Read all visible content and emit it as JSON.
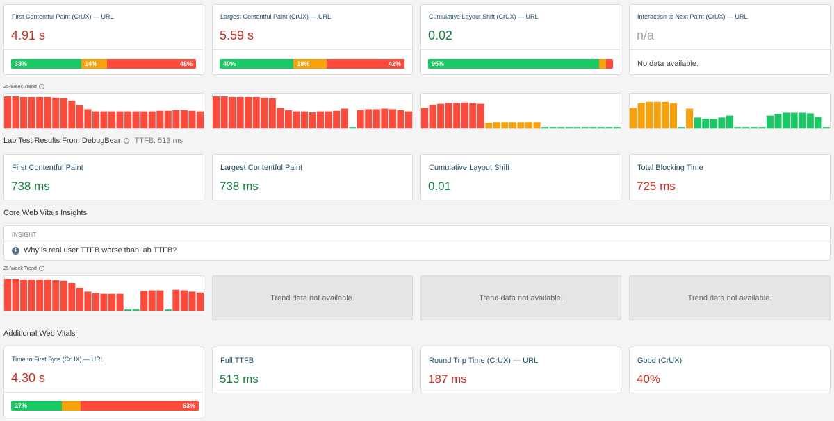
{
  "crux_metrics": [
    {
      "title": "First Contentful Paint (CrUX) — URL",
      "value": "4.91 s",
      "dist": [
        {
          "pct": 38,
          "label": "38%",
          "color": "#18c964"
        },
        {
          "pct": 14,
          "label": "14%",
          "color": "#f7a10c"
        },
        {
          "pct": 48,
          "label": "48%",
          "color": "#fc4b3b"
        }
      ]
    },
    {
      "title": "Largest Contentful Paint (CrUX) — URL",
      "value": "5.59 s",
      "dist": [
        {
          "pct": 40,
          "label": "40%",
          "color": "#18c964"
        },
        {
          "pct": 18,
          "label": "18%",
          "color": "#f7a10c"
        },
        {
          "pct": 42,
          "label": "42%",
          "color": "#fc4b3b"
        }
      ]
    },
    {
      "title": "Cumulative Layout Shift (CrUX) — URL",
      "value": "0.02",
      "dist": [
        {
          "pct": 95,
          "label": "95%",
          "color": "#18c964"
        },
        {
          "pct": 2.5,
          "label": "",
          "color": "#f7a10c"
        },
        {
          "pct": 2.5,
          "label": "",
          "color": "#fc4b3b"
        }
      ]
    },
    {
      "title": "Interaction to Next Paint (CrUX) — URL",
      "value": "n/a",
      "no_data": "No data available."
    }
  ],
  "trend_label": "25-Week Trend",
  "help_glyph": "?",
  "trends_row1": [
    {
      "bars": [
        {
          "v": 1.0,
          "c": "#fc4b3b"
        },
        {
          "v": 1.0,
          "c": "#fc4b3b"
        },
        {
          "v": 0.98,
          "c": "#fc4b3b"
        },
        {
          "v": 0.98,
          "c": "#fc4b3b"
        },
        {
          "v": 0.98,
          "c": "#fc4b3b"
        },
        {
          "v": 0.98,
          "c": "#fc4b3b"
        },
        {
          "v": 0.96,
          "c": "#fc4b3b"
        },
        {
          "v": 0.94,
          "c": "#fc4b3b"
        },
        {
          "v": 0.87,
          "c": "#fc4b3b"
        },
        {
          "v": 0.72,
          "c": "#fc4b3b"
        },
        {
          "v": 0.6,
          "c": "#fc4b3b"
        },
        {
          "v": 0.53,
          "c": "#fc4b3b"
        },
        {
          "v": 0.53,
          "c": "#fc4b3b"
        },
        {
          "v": 0.53,
          "c": "#fc4b3b"
        },
        {
          "v": 0.53,
          "c": "#fc4b3b"
        },
        {
          "v": 0.53,
          "c": "#fc4b3b"
        },
        {
          "v": 0.53,
          "c": "#fc4b3b"
        },
        {
          "v": 0.53,
          "c": "#fc4b3b"
        },
        {
          "v": 0.53,
          "c": "#fc4b3b"
        },
        {
          "v": 0.55,
          "c": "#fc4b3b"
        },
        {
          "v": 0.55,
          "c": "#fc4b3b"
        },
        {
          "v": 0.57,
          "c": "#fc4b3b"
        },
        {
          "v": 0.57,
          "c": "#fc4b3b"
        },
        {
          "v": 0.55,
          "c": "#fc4b3b"
        },
        {
          "v": 0.53,
          "c": "#fc4b3b"
        }
      ]
    },
    {
      "bars": [
        {
          "v": 1.0,
          "c": "#fc4b3b"
        },
        {
          "v": 1.0,
          "c": "#fc4b3b"
        },
        {
          "v": 0.98,
          "c": "#fc4b3b"
        },
        {
          "v": 0.98,
          "c": "#fc4b3b"
        },
        {
          "v": 0.98,
          "c": "#fc4b3b"
        },
        {
          "v": 0.98,
          "c": "#fc4b3b"
        },
        {
          "v": 0.96,
          "c": "#fc4b3b"
        },
        {
          "v": 0.94,
          "c": "#fc4b3b"
        },
        {
          "v": 0.64,
          "c": "#fc4b3b"
        },
        {
          "v": 0.57,
          "c": "#fc4b3b"
        },
        {
          "v": 0.53,
          "c": "#fc4b3b"
        },
        {
          "v": 0.53,
          "c": "#fc4b3b"
        },
        {
          "v": 0.5,
          "c": "#fc4b3b"
        },
        {
          "v": 0.53,
          "c": "#fc4b3b"
        },
        {
          "v": 0.53,
          "c": "#fc4b3b"
        },
        {
          "v": 0.55,
          "c": "#fc4b3b"
        },
        {
          "v": 0.62,
          "c": "#fc4b3b"
        },
        {
          "v": 0.04,
          "c": "#18c964"
        },
        {
          "v": 0.57,
          "c": "#fc4b3b"
        },
        {
          "v": 0.6,
          "c": "#fc4b3b"
        },
        {
          "v": 0.6,
          "c": "#fc4b3b"
        },
        {
          "v": 0.62,
          "c": "#fc4b3b"
        },
        {
          "v": 0.6,
          "c": "#fc4b3b"
        },
        {
          "v": 0.57,
          "c": "#fc4b3b"
        },
        {
          "v": 0.53,
          "c": "#fc4b3b"
        }
      ]
    },
    {
      "bars": [
        {
          "v": 0.64,
          "c": "#fc4b3b"
        },
        {
          "v": 0.74,
          "c": "#fc4b3b"
        },
        {
          "v": 0.77,
          "c": "#fc4b3b"
        },
        {
          "v": 0.79,
          "c": "#fc4b3b"
        },
        {
          "v": 0.79,
          "c": "#fc4b3b"
        },
        {
          "v": 0.81,
          "c": "#fc4b3b"
        },
        {
          "v": 0.79,
          "c": "#fc4b3b"
        },
        {
          "v": 0.77,
          "c": "#fc4b3b"
        },
        {
          "v": 0.17,
          "c": "#f7a10c"
        },
        {
          "v": 0.19,
          "c": "#f7a10c"
        },
        {
          "v": 0.19,
          "c": "#f7a10c"
        },
        {
          "v": 0.19,
          "c": "#f7a10c"
        },
        {
          "v": 0.19,
          "c": "#f7a10c"
        },
        {
          "v": 0.19,
          "c": "#f7a10c"
        },
        {
          "v": 0.19,
          "c": "#f7a10c"
        },
        {
          "v": 0.04,
          "c": "#18c964"
        },
        {
          "v": 0.04,
          "c": "#18c964"
        },
        {
          "v": 0.04,
          "c": "#18c964"
        },
        {
          "v": 0.04,
          "c": "#18c964"
        },
        {
          "v": 0.04,
          "c": "#18c964"
        },
        {
          "v": 0.04,
          "c": "#18c964"
        },
        {
          "v": 0.04,
          "c": "#18c964"
        },
        {
          "v": 0.04,
          "c": "#18c964"
        },
        {
          "v": 0.04,
          "c": "#18c964"
        },
        {
          "v": 0.04,
          "c": "#18c964"
        }
      ]
    },
    {
      "bars": [
        {
          "v": 0.64,
          "c": "#f7a10c"
        },
        {
          "v": 0.79,
          "c": "#f7a10c"
        },
        {
          "v": 0.83,
          "c": "#f7a10c"
        },
        {
          "v": 0.83,
          "c": "#f7a10c"
        },
        {
          "v": 0.83,
          "c": "#f7a10c"
        },
        {
          "v": 0.79,
          "c": "#f7a10c"
        },
        {
          "v": 0.04,
          "c": "#18c964"
        },
        {
          "v": 0.62,
          "c": "#f7a10c"
        },
        {
          "v": 0.34,
          "c": "#18c964"
        },
        {
          "v": 0.3,
          "c": "#18c964"
        },
        {
          "v": 0.3,
          "c": "#18c964"
        },
        {
          "v": 0.34,
          "c": "#18c964"
        },
        {
          "v": 0.4,
          "c": "#18c964"
        },
        {
          "v": 0.04,
          "c": "#18c964"
        },
        {
          "v": 0.04,
          "c": "#18c964"
        },
        {
          "v": 0.04,
          "c": "#18c964"
        },
        {
          "v": 0.04,
          "c": "#18c964"
        },
        {
          "v": 0.4,
          "c": "#18c964"
        },
        {
          "v": 0.45,
          "c": "#18c964"
        },
        {
          "v": 0.49,
          "c": "#18c964"
        },
        {
          "v": 0.49,
          "c": "#18c964"
        },
        {
          "v": 0.49,
          "c": "#18c964"
        },
        {
          "v": 0.47,
          "c": "#18c964"
        },
        {
          "v": 0.36,
          "c": "#18c964"
        },
        {
          "v": 0.04,
          "c": "#18c964"
        }
      ]
    }
  ],
  "lab": {
    "section_title": "Lab Test Results From DebugBear",
    "ttfb": "TTFB: 513 ms",
    "metrics": [
      {
        "title": "First Contentful Paint",
        "value": "738 ms",
        "status": "good"
      },
      {
        "title": "Largest Contentful Paint",
        "value": "738 ms",
        "status": "good"
      },
      {
        "title": "Cumulative Layout Shift",
        "value": "0.01",
        "status": "good"
      },
      {
        "title": "Total Blocking Time",
        "value": "725 ms",
        "status": "poor"
      }
    ]
  },
  "insights": {
    "section_title": "Core Web Vitals Insights",
    "header": "INSIGHT",
    "icon": "info-icon",
    "icon_glyph": "i",
    "text": "Why is real user TTFB worse than lab TTFB?"
  },
  "trends_row2": {
    "first": {
      "bars": [
        {
          "v": 1.0,
          "c": "#fc4b3b"
        },
        {
          "v": 1.0,
          "c": "#fc4b3b"
        },
        {
          "v": 0.98,
          "c": "#fc4b3b"
        },
        {
          "v": 0.98,
          "c": "#fc4b3b"
        },
        {
          "v": 0.98,
          "c": "#fc4b3b"
        },
        {
          "v": 0.98,
          "c": "#fc4b3b"
        },
        {
          "v": 0.96,
          "c": "#fc4b3b"
        },
        {
          "v": 0.94,
          "c": "#fc4b3b"
        },
        {
          "v": 0.87,
          "c": "#fc4b3b"
        },
        {
          "v": 0.72,
          "c": "#fc4b3b"
        },
        {
          "v": 0.6,
          "c": "#fc4b3b"
        },
        {
          "v": 0.55,
          "c": "#fc4b3b"
        },
        {
          "v": 0.53,
          "c": "#fc4b3b"
        },
        {
          "v": 0.53,
          "c": "#fc4b3b"
        },
        {
          "v": 0.53,
          "c": "#fc4b3b"
        },
        {
          "v": 0.04,
          "c": "#18c964"
        },
        {
          "v": 0.04,
          "c": "#18c964"
        },
        {
          "v": 0.62,
          "c": "#fc4b3b"
        },
        {
          "v": 0.64,
          "c": "#fc4b3b"
        },
        {
          "v": 0.64,
          "c": "#fc4b3b"
        },
        {
          "v": 0.04,
          "c": "#18c964"
        },
        {
          "v": 0.66,
          "c": "#fc4b3b"
        },
        {
          "v": 0.64,
          "c": "#fc4b3b"
        },
        {
          "v": 0.6,
          "c": "#fc4b3b"
        },
        {
          "v": 0.57,
          "c": "#fc4b3b"
        }
      ]
    },
    "na_text": "Trend data not available."
  },
  "additional": {
    "section_title": "Additional Web Vitals",
    "ttfb_crux": {
      "title": "Time to First Byte (CrUX) — URL",
      "value": "4.30 s",
      "dist": [
        {
          "pct": 27,
          "label": "27%",
          "color": "#18c964"
        },
        {
          "pct": 10,
          "label": "",
          "color": "#f7a10c"
        },
        {
          "pct": 63,
          "label": "63%",
          "color": "#fc4b3b"
        }
      ]
    },
    "others": [
      {
        "title": "Full TTFB",
        "value": "513 ms",
        "status": "good"
      },
      {
        "title": "Round Trip Time (CrUX) — URL",
        "value": "187 ms",
        "status": "poor"
      },
      {
        "title": "Good (CrUX)",
        "value": "40%",
        "status": "poor"
      }
    ]
  },
  "colors": {
    "good": "#18c964",
    "needs_improvement": "#f7a10c",
    "poor": "#fc4b3b",
    "title_blue": "#1d4e6e",
    "good_text": "#13843e",
    "poor_text": "#d52a1f"
  }
}
